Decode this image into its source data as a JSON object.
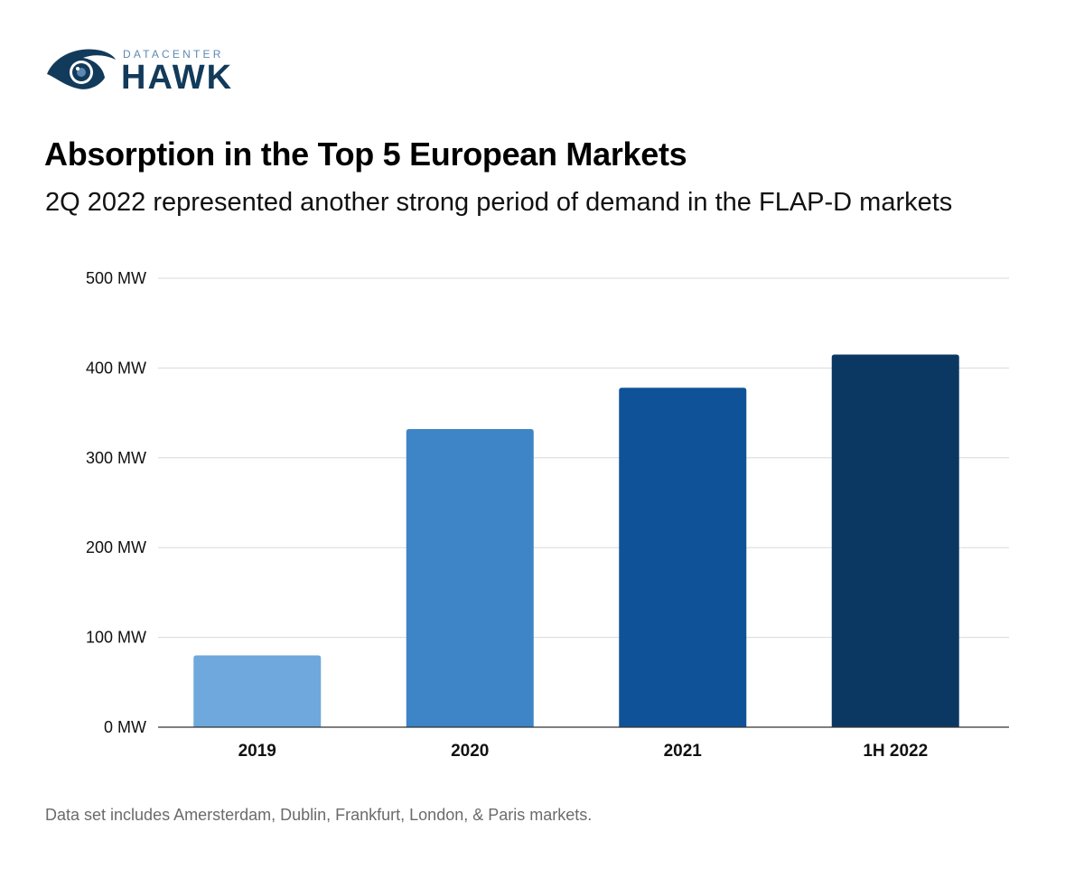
{
  "logo": {
    "top_text": "DATACENTER",
    "main_text": "HAWK",
    "icon": "hawk-eye-icon",
    "colors": {
      "dark": "#123a5a",
      "light": "#5e88b3"
    }
  },
  "header": {
    "title": "Absorption in the Top 5 European Markets",
    "subtitle": "2Q 2022 represented another strong period of demand in the FLAP-D markets"
  },
  "chart_data": {
    "type": "bar",
    "categories": [
      "2019",
      "2020",
      "2021",
      "1H 2022"
    ],
    "values": [
      80,
      332,
      378,
      415
    ],
    "bar_colors": [
      "#6fa8dc",
      "#3d85c6",
      "#0f5298",
      "#0b3862"
    ],
    "unit": "MW",
    "yticks": [
      "0 MW",
      "100 MW",
      "200 MW",
      "300 MW",
      "400 MW",
      "500 MW"
    ],
    "ylim": [
      0,
      500
    ],
    "grid": true,
    "xlabel": "",
    "ylabel": ""
  },
  "footnote": "Data set includes Amersterdam, Dublin, Frankfurt, London, & Paris markets."
}
